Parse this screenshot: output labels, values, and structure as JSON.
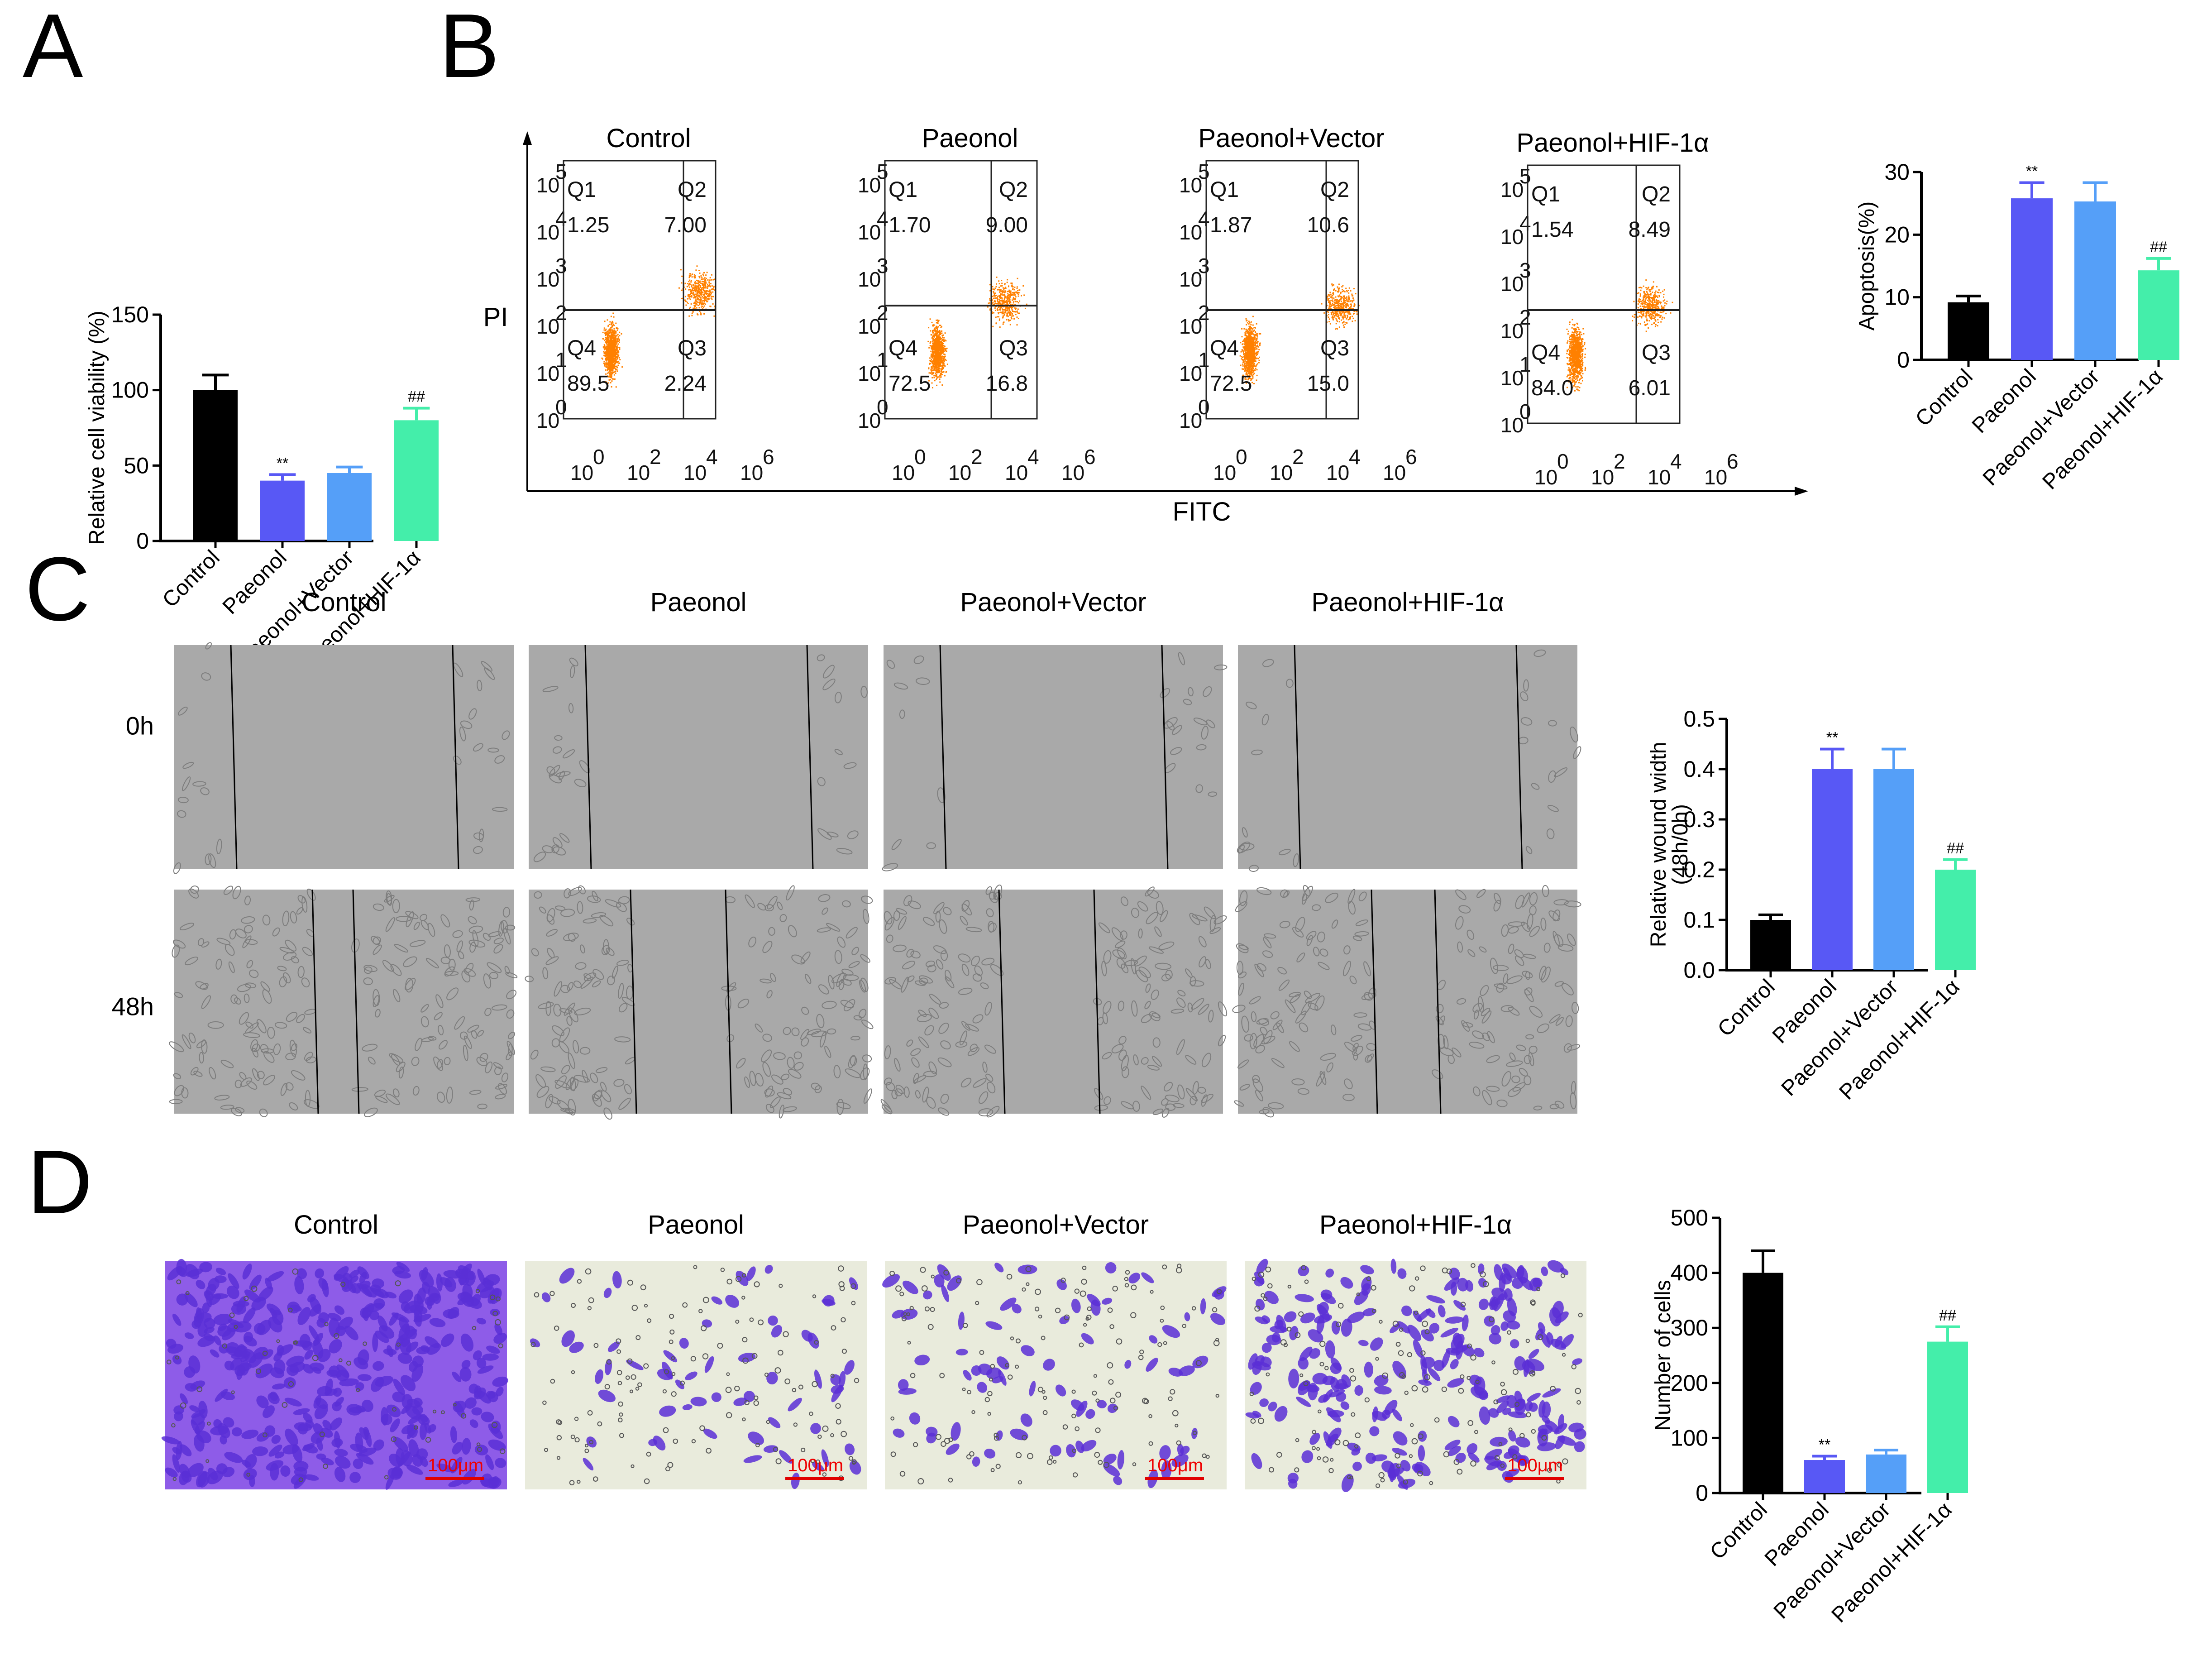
{
  "colors": {
    "control": "#000000",
    "paeonol": "#5858f5",
    "vector": "#559ff8",
    "hif": "#44eeaa",
    "flow_dots": "#ff8000",
    "scratch_bg": "#a9a9a9",
    "transwell_bg": "#e9ebdc",
    "crystal_violet": "#5a2fd6",
    "scale_bar": "#e00000"
  },
  "panel_labels": {
    "A": "A",
    "B": "B",
    "C": "C",
    "D": "D"
  },
  "groups": [
    "Control",
    "Paeonol",
    "Paeonol+Vector",
    "Paeonol+HIF-1α"
  ],
  "flow": {
    "y_axis_label": "PI",
    "x_axis_label": "FITC",
    "y_ticks": [
      {
        "base": "10",
        "exp": "5"
      },
      {
        "base": "10",
        "exp": "4"
      },
      {
        "base": "10",
        "exp": "3"
      },
      {
        "base": "10",
        "exp": "2"
      },
      {
        "base": "10",
        "exp": "1"
      },
      {
        "base": "10",
        "exp": "0"
      }
    ],
    "x_ticks": [
      {
        "base": "10",
        "exp": "0"
      },
      {
        "base": "10",
        "exp": "2"
      },
      {
        "base": "10",
        "exp": "4"
      },
      {
        "base": "10",
        "exp": "6"
      }
    ],
    "plots": [
      {
        "title": "Control",
        "Q1": "1.25",
        "Q2": "7.00",
        "Q3": "2.24",
        "Q4": "89.5"
      },
      {
        "title": "Paeonol",
        "Q1": "1.70",
        "Q2": "9.00",
        "Q3": "16.8",
        "Q4": "72.5"
      },
      {
        "title": "Paeonol+Vector",
        "Q1": "1.87",
        "Q2": "10.6",
        "Q3": "15.0",
        "Q4": "72.5"
      },
      {
        "title": "Paeonol+HIF-1α",
        "Q1": "1.54",
        "Q2": "8.49",
        "Q3": "6.01",
        "Q4": "84.0"
      }
    ],
    "quadrant_names": {
      "Q1": "Q1",
      "Q2": "Q2",
      "Q3": "Q3",
      "Q4": "Q4"
    }
  },
  "scratch": {
    "titles": [
      "Control",
      "Paeonol",
      "Paeonol+Vector",
      "Paeonol+HIF-1α"
    ],
    "rows": [
      "0h",
      "48h"
    ]
  },
  "transwell": {
    "titles": [
      "Control",
      "Paeonol",
      "Paeonol+Vector",
      "Paeonol+HIF-1α"
    ],
    "scale_bar_label": "100μm"
  },
  "chart_data": [
    {
      "id": "A",
      "type": "bar",
      "title": "",
      "categories": [
        "Control",
        "Paeonol",
        "Paeonol+Vector",
        "Paeonol+HIF-1α"
      ],
      "values": [
        100,
        40,
        45,
        80
      ],
      "errors": [
        10,
        4,
        4,
        8
      ],
      "annotations": [
        "",
        "**",
        "",
        "##"
      ],
      "xlabel": "",
      "ylabel": "Relative cell viability (%)",
      "ylim": [
        0,
        150
      ],
      "yticks": [
        0,
        50,
        100,
        150
      ],
      "grid": false
    },
    {
      "id": "B",
      "type": "bar",
      "title": "",
      "categories": [
        "Control",
        "Paeonol",
        "Paeonol+Vector",
        "Paeonol+HIF-1α"
      ],
      "values": [
        9.2,
        25.8,
        25.3,
        14.3
      ],
      "errors": [
        1.0,
        2.5,
        3.0,
        1.9
      ],
      "annotations": [
        "",
        "**",
        "",
        "##"
      ],
      "xlabel": "",
      "ylabel": "Apoptosis(%)",
      "ylim": [
        0,
        30
      ],
      "yticks": [
        0,
        10,
        20,
        30
      ],
      "grid": false
    },
    {
      "id": "C",
      "type": "bar",
      "title": "",
      "categories": [
        "Control",
        "Paeonol",
        "Paeonol+Vector",
        "Paeonol+HIF-1α"
      ],
      "values": [
        0.1,
        0.4,
        0.4,
        0.2
      ],
      "errors": [
        0.01,
        0.04,
        0.04,
        0.02
      ],
      "annotations": [
        "",
        "**",
        "",
        "##"
      ],
      "xlabel": "",
      "ylabel": "Relative wound width",
      "ylabel2": "(48h/0h)",
      "ylim": [
        0,
        0.5
      ],
      "yticks": [
        "0.0",
        "0.1",
        "0.2",
        "0.3",
        "0.4",
        "0.5"
      ],
      "grid": false
    },
    {
      "id": "D",
      "type": "bar",
      "title": "",
      "categories": [
        "Control",
        "Paeonol",
        "Paeonol+Vector",
        "Paeonol+HIF-1α"
      ],
      "values": [
        400,
        60,
        70,
        275
      ],
      "errors": [
        40,
        7,
        8,
        27
      ],
      "annotations": [
        "",
        "**",
        "",
        "##"
      ],
      "xlabel": "",
      "ylabel": "Number of cells",
      "ylim": [
        0,
        500
      ],
      "yticks": [
        0,
        100,
        200,
        300,
        400,
        500
      ],
      "grid": false
    }
  ]
}
